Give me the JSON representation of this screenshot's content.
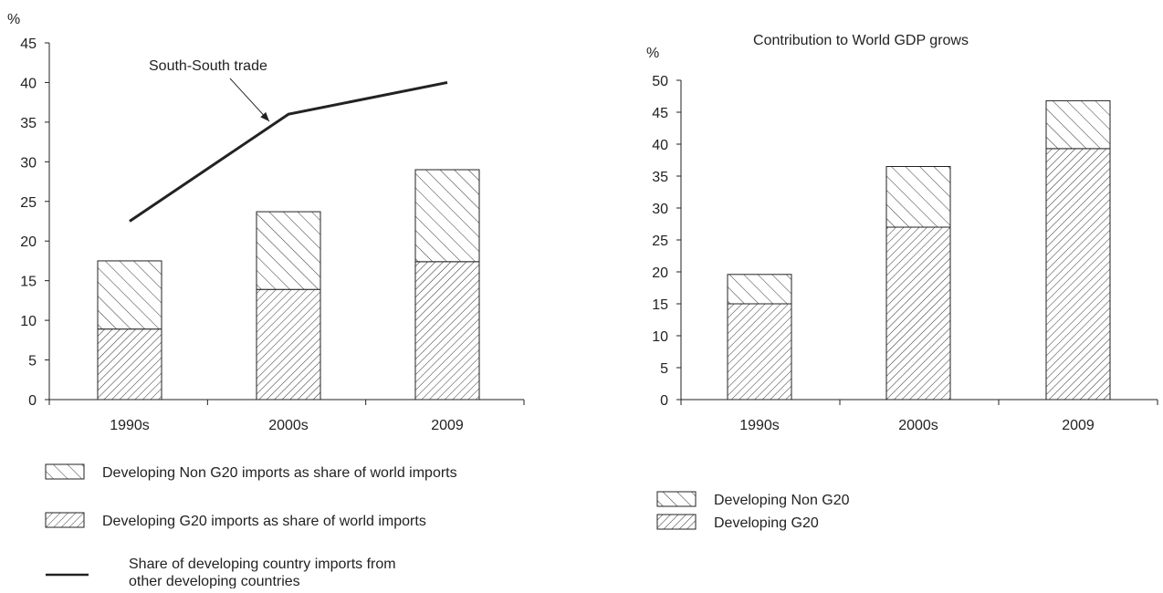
{
  "chart_data": [
    {
      "type": "bar",
      "stacked": true,
      "title": "",
      "ylabel": "%",
      "ylim": [
        0,
        45
      ],
      "yticks": [
        0,
        5,
        10,
        15,
        20,
        25,
        30,
        35,
        40,
        45
      ],
      "categories": [
        "1990s",
        "2000s",
        "2009"
      ],
      "series": [
        {
          "name": "Developing G20 imports as share of world imports",
          "kind": "bar",
          "pattern": "fine-diagonal",
          "values": [
            8.9,
            13.9,
            17.4
          ]
        },
        {
          "name": "Developing Non G20 imports as share of world imports",
          "kind": "bar",
          "pattern": "coarse-diagonal",
          "values": [
            8.6,
            9.8,
            11.6
          ]
        },
        {
          "name": "Share of developing country imports from other developing countries",
          "kind": "line",
          "values": [
            22.5,
            36,
            40
          ]
        }
      ],
      "annotation": "South-South trade",
      "grid": false,
      "legend_position": "bottom"
    },
    {
      "type": "bar",
      "stacked": true,
      "title": "Contribution to World GDP grows",
      "ylabel": "%",
      "ylim": [
        0,
        50
      ],
      "yticks": [
        0,
        5,
        10,
        15,
        20,
        25,
        30,
        35,
        40,
        45,
        50
      ],
      "categories": [
        "1990s",
        "2000s",
        "2009"
      ],
      "series": [
        {
          "name": "Developing G20",
          "kind": "bar",
          "pattern": "fine-diagonal",
          "values": [
            15,
            27,
            39.3
          ]
        },
        {
          "name": "Developing Non G20",
          "kind": "bar",
          "pattern": "coarse-diagonal",
          "values": [
            4.6,
            9.5,
            7.5
          ]
        }
      ],
      "grid": false,
      "legend_position": "bottom"
    }
  ],
  "colors": {
    "ink": "#222222",
    "bar_fill": "#ffffff"
  }
}
